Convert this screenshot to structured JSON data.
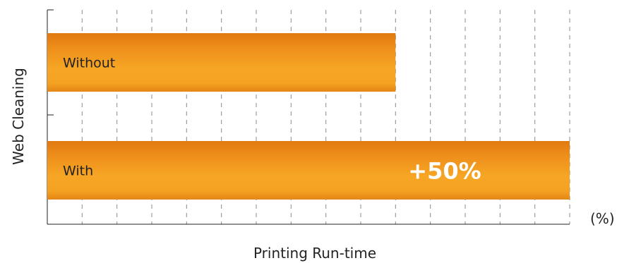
{
  "chart_data": {
    "type": "bar",
    "orientation": "horizontal",
    "categories": [
      "Without",
      "With"
    ],
    "values": [
      100,
      150
    ],
    "data_labels": [
      "",
      "+50%"
    ],
    "xlabel": "Printing Run-time",
    "ylabel": "Web Cleaning",
    "x_unit": "(%)",
    "xlim": [
      0,
      150
    ],
    "grid": true,
    "legend": "none",
    "colors": {
      "bar_top": "#E07A10",
      "bar_mid": "#F5A623",
      "bar_bottom": "#E8901A",
      "grid": "#888888",
      "axis": "#222222"
    }
  }
}
